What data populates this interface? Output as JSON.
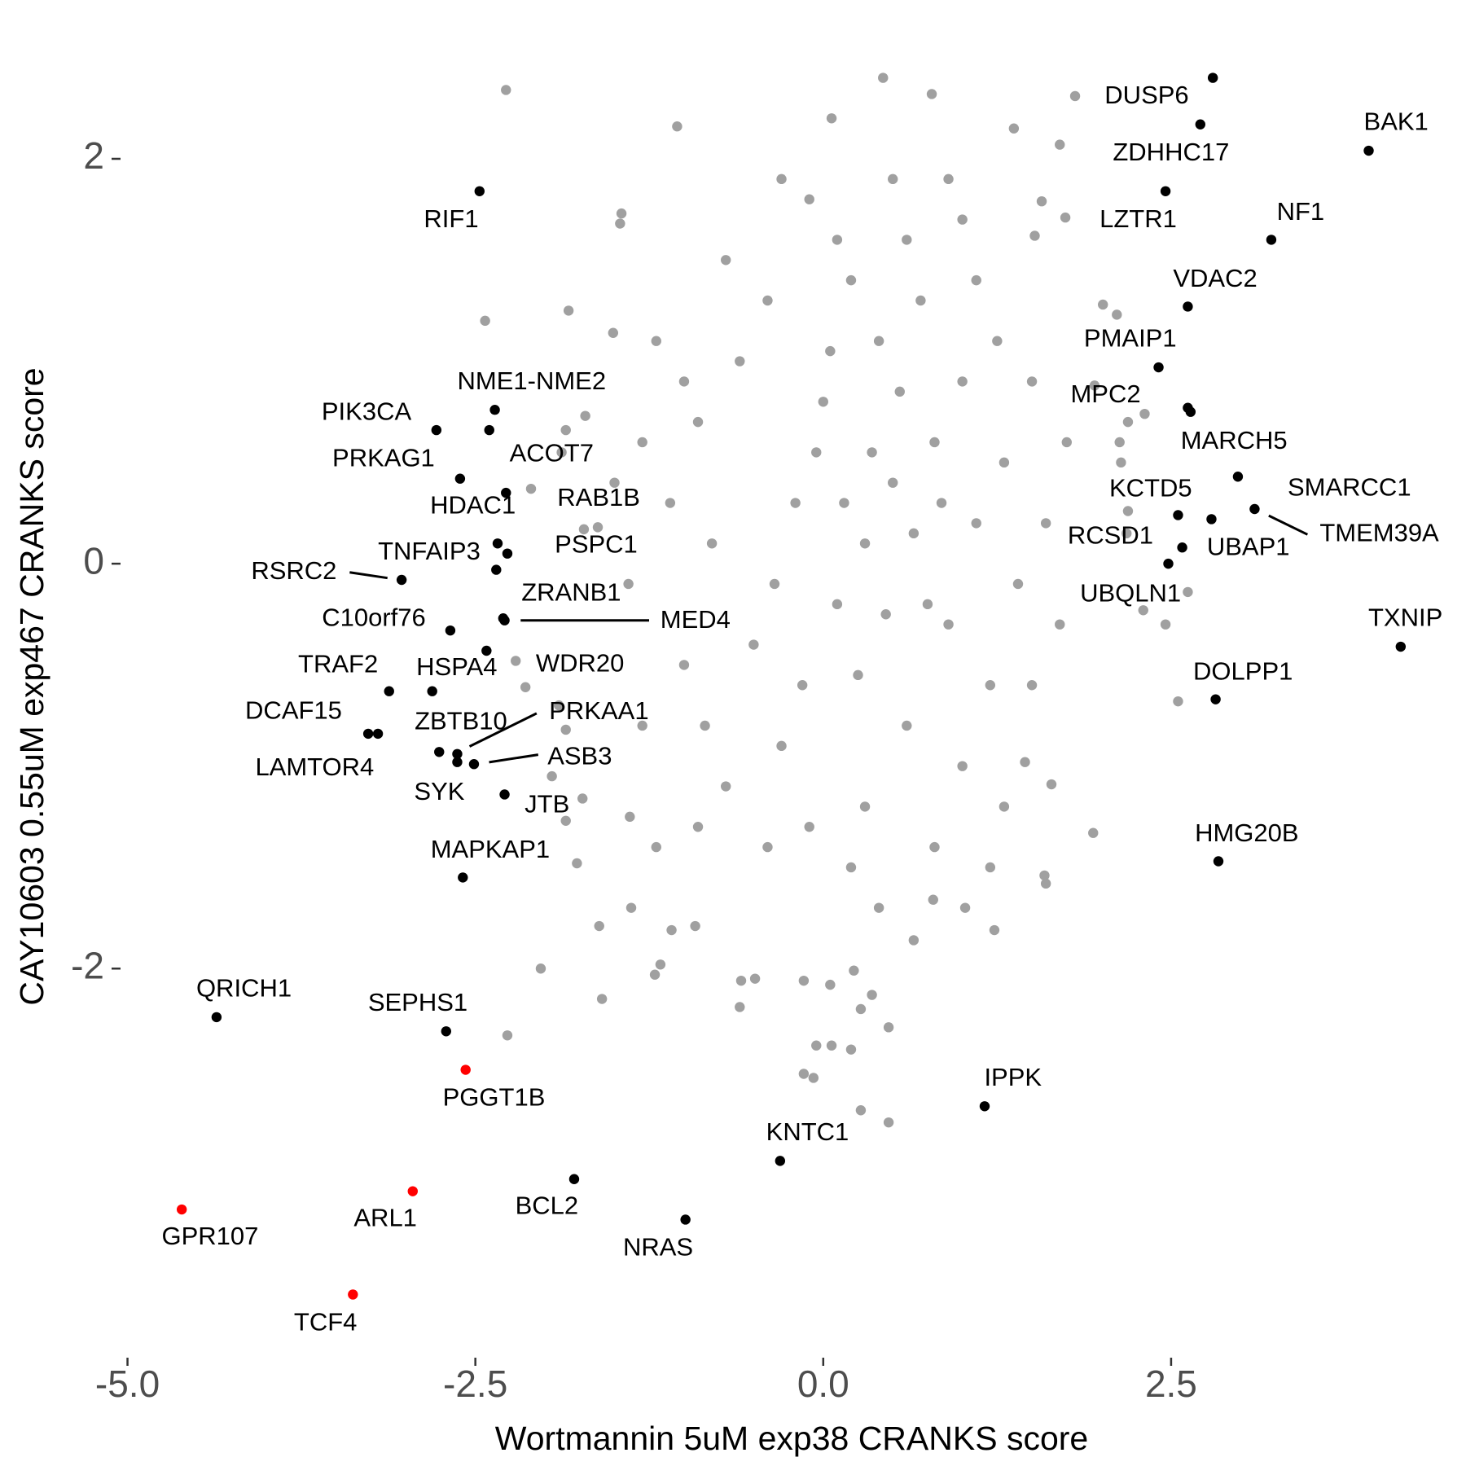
{
  "chart_data": {
    "type": "scatter",
    "xlabel": "Wortmannin 5uM exp38 CRANKS score",
    "ylabel": "CAY10603 0.55uM exp467 CRANKS score",
    "xlim": [
      -5.05,
      4.59
    ],
    "ylim": [
      -3.91,
      2.7
    ],
    "xticks": [
      {
        "value": -5,
        "label": "-5.0"
      },
      {
        "value": -2.5,
        "label": "-2.5"
      },
      {
        "value": 0,
        "label": "0.0"
      },
      {
        "value": 2.5,
        "label": "2.5"
      }
    ],
    "yticks": [
      -2,
      0,
      2
    ],
    "grid": false,
    "series": [
      {
        "color": "#a0a0a0",
        "x": [
          -2.28,
          0.43,
          0.78,
          1.81,
          -1.05,
          0.06,
          1.37,
          1.7,
          -2.43,
          -1.83,
          -1.51,
          -1.46,
          -1.45,
          1.74,
          1.52,
          1.57,
          2.01,
          2.11,
          2.31,
          1.95,
          2.19,
          2.13,
          2.14,
          -1.71,
          -1.88,
          -1.85,
          -2.1,
          -1.62,
          -1.72,
          2.18,
          2.19,
          2.62,
          2.3,
          2.46,
          2.55,
          -2.21,
          -2.14,
          -1.9,
          -1.85,
          -1.95,
          -1.73,
          -1.85,
          -1.77,
          -1.39,
          1.94,
          1.6,
          1.64,
          1.45,
          -2.03,
          -1.61,
          -2.27,
          -1.38,
          -1.59,
          -1.21,
          -0.59,
          -0.49,
          -0.6,
          -0.14,
          0.05,
          0.22,
          0.27,
          0.35,
          0.47,
          0.06,
          -0.05,
          0.2,
          -0.14,
          -0.07,
          0.27,
          0.47,
          -1.09,
          0.65,
          1.02,
          1.23,
          0.79,
          -0.92,
          -1.17,
          1.59,
          0.3,
          0.5,
          0.1,
          -0.2,
          0.8,
          0.9,
          -0.5,
          0.0,
          0.4,
          0.6,
          -0.3,
          1.1,
          1.2,
          -0.8,
          -0.9,
          -0.6,
          0.2,
          0.7,
          1.0,
          1.3,
          1.4,
          1.0,
          0.3,
          -0.1,
          -0.7,
          -1.0,
          -1.1,
          -1.0,
          -0.4,
          0.1,
          0.6,
          1.1,
          1.5,
          1.6,
          1.5,
          1.3,
          0.8,
          0.2,
          -0.4,
          -0.9,
          -1.3,
          -1.4,
          -1.3,
          -1.2,
          -0.7,
          -0.1,
          0.5,
          1.0,
          0.35,
          0.65,
          -0.05,
          0.25,
          0.75,
          -0.35,
          0.55,
          0.15,
          0.45,
          0.85,
          -0.15,
          0.05,
          1.25,
          -0.85,
          1.7,
          -1.5,
          1.75,
          -1.2,
          1.2,
          0.9,
          -0.3,
          0.4
        ],
        "y": [
          2.34,
          2.4,
          2.32,
          2.31,
          2.16,
          2.2,
          2.15,
          2.07,
          1.2,
          1.25,
          1.14,
          1.68,
          1.73,
          1.71,
          1.62,
          1.79,
          1.28,
          1.23,
          0.74,
          0.88,
          0.7,
          0.6,
          0.5,
          0.73,
          0.55,
          0.66,
          0.37,
          0.18,
          0.17,
          0.15,
          0.26,
          -0.14,
          -0.23,
          -0.3,
          -0.68,
          -0.48,
          -0.61,
          -0.7,
          -0.82,
          -1.05,
          -1.16,
          -1.27,
          -1.48,
          -1.25,
          -1.33,
          -1.58,
          -1.09,
          -0.98,
          -2.0,
          -1.79,
          -2.33,
          -1.7,
          -2.15,
          -2.03,
          -2.06,
          -2.05,
          -2.19,
          -2.06,
          -2.08,
          -2.01,
          -2.2,
          -2.13,
          -2.29,
          -2.38,
          -2.38,
          -2.4,
          -2.52,
          -2.54,
          -2.7,
          -2.76,
          -1.81,
          -1.86,
          -1.7,
          -1.81,
          -1.66,
          -1.79,
          -1.98,
          -1.54,
          0.1,
          0.4,
          -0.2,
          0.3,
          0.6,
          -0.3,
          -0.4,
          0.8,
          1.1,
          -0.8,
          -0.9,
          0.2,
          -0.6,
          0.1,
          0.7,
          1.0,
          1.4,
          1.3,
          0.9,
          0.5,
          -0.1,
          -1.0,
          -1.2,
          -1.3,
          -1.1,
          -0.5,
          0.3,
          0.9,
          1.3,
          1.6,
          1.6,
          1.4,
          0.9,
          0.2,
          -0.6,
          -1.2,
          -1.4,
          -1.5,
          -1.4,
          -1.3,
          -0.8,
          -0.1,
          0.6,
          1.1,
          1.5,
          1.8,
          1.9,
          1.7,
          0.55,
          0.15,
          0.55,
          -0.55,
          -0.2,
          -0.1,
          0.85,
          0.3,
          -0.25,
          0.3,
          -0.6,
          1.05,
          1.1,
          -0.8,
          -0.3,
          0.4,
          0.6,
          -1.4,
          -1.5,
          1.9,
          1.9,
          -1.7
        ]
      },
      {
        "color": "#000000",
        "x": [
          2.8,
          2.71,
          3.92,
          -2.47,
          2.46,
          3.22,
          2.62,
          2.41,
          2.62,
          2.64,
          2.98,
          3.1,
          2.79,
          2.55,
          2.58,
          2.48,
          4.15,
          2.82,
          2.84,
          1.16,
          -0.31,
          -1.79,
          -0.99,
          -4.36,
          -2.71,
          -2.59,
          -2.29,
          -2.63,
          -2.51,
          -2.76,
          -2.63,
          -3.27,
          -3.2,
          -3.12,
          -2.81,
          -2.42,
          -2.68,
          -2.29,
          -2.3,
          -3.03,
          -2.78,
          -2.36,
          -2.4,
          -2.61,
          -2.28,
          -2.34,
          -2.27,
          -2.35
        ],
        "y": [
          2.4,
          2.17,
          2.04,
          1.84,
          1.84,
          1.6,
          1.27,
          0.97,
          0.77,
          0.75,
          0.43,
          0.27,
          0.22,
          0.24,
          0.08,
          0.0,
          -0.41,
          -0.67,
          -1.47,
          -2.68,
          -2.95,
          -3.04,
          -3.24,
          -2.24,
          -2.31,
          -1.55,
          -1.14,
          -0.98,
          -0.99,
          -0.93,
          -0.94,
          -0.84,
          -0.84,
          -0.63,
          -0.63,
          -0.43,
          -0.33,
          -0.28,
          -0.27,
          -0.08,
          0.66,
          0.76,
          0.66,
          0.42,
          0.35,
          0.1,
          0.05,
          -0.03
        ],
        "labels": [
          "DUSP6",
          "ZDHHC17",
          "BAK1",
          "RIF1",
          "LZTR1",
          "NF1",
          "VDAC2",
          "PMAIP1",
          "MPC2",
          "MARCH5",
          "SMARCC1",
          "TMEM39A",
          "UBAP1",
          "KCTD5",
          "RCSD1",
          "UBQLN1",
          "TXNIP",
          "DOLPP1",
          "HMG20B",
          "IPPK",
          "KNTC1",
          "BCL2",
          "NRAS",
          "QRICH1",
          "SEPHS1",
          "MAPKAP1",
          "JTB",
          "SYK",
          "ASB3",
          "ZBTB10",
          "PRKAA1",
          "DCAF15",
          "LAMTOR4",
          "TRAF2",
          "HSPA4",
          "WDR20",
          "C10orf76",
          "MED4",
          "ZRANB1",
          "RSRC2",
          "PIK3CA",
          "NME1-NME2",
          "ACOT7",
          "PRKAG1",
          "HDAC1",
          "RAB1B",
          "PSPC1",
          "TNFAIP3"
        ]
      },
      {
        "color": "#ff0000",
        "x": [
          -2.57,
          -2.95,
          -4.61,
          -3.38
        ],
        "y": [
          -2.5,
          -3.1,
          -3.19,
          -3.61
        ],
        "labels": [
          "PGGT1B",
          "ARL1",
          "GPR107",
          "TCF4"
        ]
      }
    ]
  }
}
